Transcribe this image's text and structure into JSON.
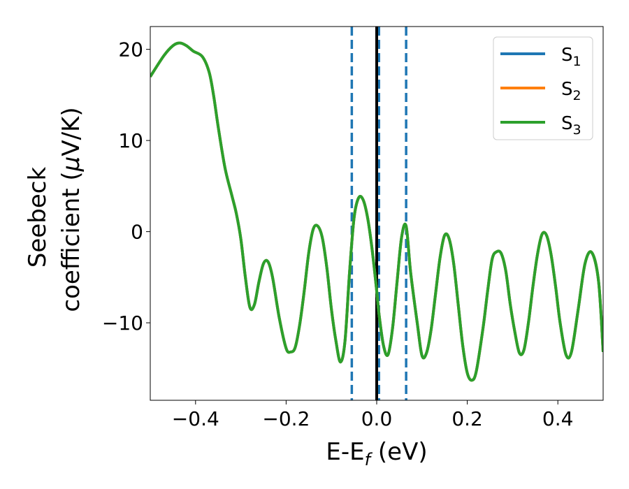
{
  "chart_data": {
    "type": "line",
    "title": "",
    "xlabel": {
      "main": "E-E",
      "sub": "f",
      "unit": " (eV)"
    },
    "ylabel": {
      "line1": "Seebeck",
      "line2_prefix": "coefficient  (",
      "mu": "μ",
      "line2_suffix": "V/K)"
    },
    "xlim": [
      -0.5,
      0.5
    ],
    "ylim": [
      -18.5,
      22.5
    ],
    "xticks": [
      -0.4,
      -0.2,
      0.0,
      0.2,
      0.4
    ],
    "xtick_labels": [
      "−0.4",
      "−0.2",
      "0.0",
      "0.2",
      "0.4"
    ],
    "yticks": [
      -10,
      0,
      10,
      20
    ],
    "ytick_labels": [
      "−10",
      "0",
      "10",
      "20"
    ],
    "grid": false,
    "legend": {
      "placement": "top-right"
    },
    "series": [
      {
        "name": "S",
        "sub": "1",
        "color": "#1f77b4",
        "x": [
          -0.5,
          -0.47,
          -0.45,
          -0.435,
          -0.42,
          -0.405,
          -0.385,
          -0.37,
          -0.36,
          -0.35,
          -0.335,
          -0.32,
          -0.31,
          -0.3,
          -0.29,
          -0.28,
          -0.27,
          -0.26,
          -0.25,
          -0.24,
          -0.23,
          -0.215,
          -0.2,
          -0.19,
          -0.18,
          -0.17,
          -0.16,
          -0.15,
          -0.14,
          -0.13,
          -0.12,
          -0.11,
          -0.1,
          -0.09,
          -0.08,
          -0.07,
          -0.06,
          -0.05,
          -0.04,
          -0.03,
          -0.02,
          -0.01,
          0.0,
          0.005,
          0.015,
          0.025,
          0.035,
          0.045,
          0.055,
          0.065,
          0.075,
          0.09,
          0.1,
          0.11,
          0.12,
          0.13,
          0.14,
          0.15,
          0.16,
          0.17,
          0.18,
          0.19,
          0.2,
          0.21,
          0.22,
          0.235,
          0.245,
          0.255,
          0.265,
          0.275,
          0.285,
          0.295,
          0.305,
          0.315,
          0.325,
          0.335,
          0.345,
          0.355,
          0.365,
          0.375,
          0.385,
          0.395,
          0.405,
          0.418,
          0.43,
          0.445,
          0.46,
          0.475,
          0.49,
          0.5
        ],
        "y": [
          17.0,
          19.3,
          20.4,
          20.7,
          20.4,
          19.8,
          19.2,
          17.5,
          14.9,
          11.5,
          7.0,
          4.0,
          2.0,
          -0.8,
          -5.0,
          -8.3,
          -8.0,
          -5.5,
          -3.5,
          -3.3,
          -5.0,
          -9.5,
          -12.8,
          -13.2,
          -12.7,
          -10.2,
          -6.5,
          -2.3,
          0.3,
          0.6,
          -0.7,
          -4.0,
          -8.5,
          -12.0,
          -14.3,
          -12.0,
          -4.5,
          1.5,
          3.7,
          3.5,
          1.5,
          -2.0,
          -6.5,
          -9.0,
          -12.5,
          -13.5,
          -10.6,
          -5.5,
          -0.6,
          0.6,
          -4.5,
          -10.2,
          -13.6,
          -13.3,
          -10.8,
          -6.8,
          -2.8,
          -0.4,
          -0.8,
          -3.5,
          -8.0,
          -12.5,
          -15.5,
          -16.3,
          -15.3,
          -10.5,
          -6.5,
          -3.0,
          -2.2,
          -2.4,
          -4.3,
          -8.0,
          -11.0,
          -13.3,
          -13.0,
          -10.0,
          -6.0,
          -2.5,
          -0.3,
          -0.4,
          -2.5,
          -6.0,
          -10.0,
          -13.5,
          -13.2,
          -8.5,
          -3.5,
          -2.3,
          -5.5,
          -13.2
        ]
      },
      {
        "name": "S",
        "sub": "2",
        "color": "#ff7f0e",
        "x": [
          -0.5,
          -0.47,
          -0.45,
          -0.435,
          -0.42,
          -0.405,
          -0.385,
          -0.37,
          -0.36,
          -0.35,
          -0.335,
          -0.32,
          -0.31,
          -0.3,
          -0.29,
          -0.28,
          -0.27,
          -0.26,
          -0.25,
          -0.24,
          -0.23,
          -0.215,
          -0.2,
          -0.19,
          -0.18,
          -0.17,
          -0.16,
          -0.15,
          -0.14,
          -0.13,
          -0.12,
          -0.11,
          -0.1,
          -0.09,
          -0.08,
          -0.07,
          -0.06,
          -0.05,
          -0.04,
          -0.03,
          -0.02,
          -0.01,
          0.0,
          0.005,
          0.015,
          0.025,
          0.035,
          0.045,
          0.055,
          0.065,
          0.075,
          0.09,
          0.1,
          0.11,
          0.12,
          0.13,
          0.14,
          0.15,
          0.16,
          0.17,
          0.18,
          0.19,
          0.2,
          0.21,
          0.22,
          0.235,
          0.245,
          0.255,
          0.265,
          0.275,
          0.285,
          0.295,
          0.305,
          0.315,
          0.325,
          0.335,
          0.345,
          0.355,
          0.365,
          0.375,
          0.385,
          0.395,
          0.405,
          0.418,
          0.43,
          0.445,
          0.46,
          0.475,
          0.49,
          0.5
        ],
        "y": [
          17.0,
          19.3,
          20.4,
          20.7,
          20.4,
          19.8,
          19.2,
          17.5,
          14.9,
          11.5,
          7.0,
          4.0,
          2.0,
          -0.8,
          -5.0,
          -8.3,
          -8.0,
          -5.5,
          -3.5,
          -3.3,
          -5.0,
          -9.5,
          -12.8,
          -13.2,
          -12.7,
          -10.2,
          -6.5,
          -2.3,
          0.3,
          0.6,
          -0.7,
          -4.0,
          -8.5,
          -12.0,
          -14.3,
          -12.0,
          -4.5,
          1.5,
          3.7,
          3.5,
          1.5,
          -2.0,
          -6.5,
          -9.0,
          -12.5,
          -13.5,
          -10.6,
          -5.5,
          -0.6,
          0.6,
          -4.5,
          -10.2,
          -13.6,
          -13.3,
          -10.8,
          -6.8,
          -2.8,
          -0.4,
          -0.8,
          -3.5,
          -8.0,
          -12.5,
          -15.5,
          -16.3,
          -15.3,
          -10.5,
          -6.5,
          -3.0,
          -2.2,
          -2.4,
          -4.3,
          -8.0,
          -11.0,
          -13.3,
          -13.0,
          -10.0,
          -6.0,
          -2.5,
          -0.3,
          -0.4,
          -2.5,
          -6.0,
          -10.0,
          -13.5,
          -13.2,
          -8.5,
          -3.5,
          -2.3,
          -5.5,
          -13.2
        ]
      },
      {
        "name": "S",
        "sub": "3",
        "color": "#2ca02c",
        "x": [
          -0.5,
          -0.47,
          -0.45,
          -0.435,
          -0.42,
          -0.405,
          -0.385,
          -0.37,
          -0.36,
          -0.35,
          -0.335,
          -0.32,
          -0.31,
          -0.3,
          -0.29,
          -0.28,
          -0.27,
          -0.26,
          -0.25,
          -0.24,
          -0.23,
          -0.215,
          -0.2,
          -0.19,
          -0.18,
          -0.17,
          -0.16,
          -0.15,
          -0.14,
          -0.13,
          -0.12,
          -0.11,
          -0.1,
          -0.09,
          -0.08,
          -0.07,
          -0.06,
          -0.05,
          -0.04,
          -0.03,
          -0.02,
          -0.01,
          0.0,
          0.005,
          0.015,
          0.025,
          0.035,
          0.045,
          0.055,
          0.065,
          0.075,
          0.09,
          0.1,
          0.11,
          0.12,
          0.13,
          0.14,
          0.15,
          0.16,
          0.17,
          0.18,
          0.19,
          0.2,
          0.21,
          0.22,
          0.235,
          0.245,
          0.255,
          0.265,
          0.275,
          0.285,
          0.295,
          0.305,
          0.315,
          0.325,
          0.335,
          0.345,
          0.355,
          0.365,
          0.375,
          0.385,
          0.395,
          0.405,
          0.418,
          0.43,
          0.445,
          0.46,
          0.475,
          0.49,
          0.5
        ],
        "y": [
          17.0,
          19.3,
          20.4,
          20.7,
          20.4,
          19.8,
          19.2,
          17.5,
          14.9,
          11.5,
          7.0,
          4.0,
          2.0,
          -0.8,
          -5.0,
          -8.3,
          -8.0,
          -5.5,
          -3.5,
          -3.3,
          -5.0,
          -9.5,
          -12.8,
          -13.2,
          -12.7,
          -10.2,
          -6.5,
          -2.3,
          0.3,
          0.6,
          -0.7,
          -4.0,
          -8.5,
          -12.0,
          -14.3,
          -12.0,
          -4.5,
          1.5,
          3.7,
          3.5,
          1.5,
          -2.0,
          -6.5,
          -9.0,
          -12.5,
          -13.5,
          -10.6,
          -5.5,
          -0.6,
          0.6,
          -4.5,
          -10.2,
          -13.6,
          -13.3,
          -10.8,
          -6.8,
          -2.8,
          -0.4,
          -0.8,
          -3.5,
          -8.0,
          -12.5,
          -15.5,
          -16.3,
          -15.3,
          -10.5,
          -6.5,
          -3.0,
          -2.2,
          -2.4,
          -4.3,
          -8.0,
          -11.0,
          -13.3,
          -13.0,
          -10.0,
          -6.0,
          -2.5,
          -0.3,
          -0.4,
          -2.5,
          -6.0,
          -10.0,
          -13.5,
          -13.2,
          -8.5,
          -3.5,
          -2.3,
          -5.5,
          -13.2
        ]
      }
    ],
    "vlines": [
      {
        "x": -0.055,
        "style": "dashed",
        "color": "#1f77b4"
      },
      {
        "x": 0.005,
        "style": "dashed",
        "color": "#1f77b4"
      },
      {
        "x": 0.065,
        "style": "dashed",
        "color": "#1f77b4"
      },
      {
        "x": 0.0,
        "style": "solid",
        "color": "#000000"
      }
    ]
  }
}
